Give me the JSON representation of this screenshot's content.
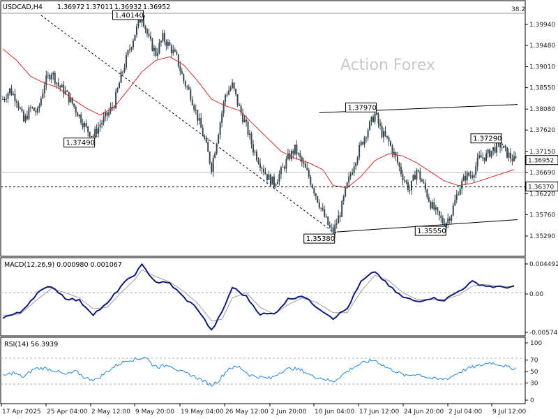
{
  "chart_data": {
    "type": "candlestick",
    "symbol": "USDCAD,H4",
    "ohlc_header": [
      "1.36972",
      "1.37011",
      "1.36932",
      "1.36952"
    ],
    "watermark": "Action Forex",
    "fib_label": "38.2",
    "price_axis": {
      "min": 1.3529,
      "max": 1.3994,
      "ticks": [
        "1.39940",
        "1.39480",
        "1.39010",
        "1.38550",
        "1.38080",
        "1.37620",
        "1.37150",
        "1.36690",
        "1.36220",
        "1.35760",
        "1.35290"
      ]
    },
    "current_price": "1.36952",
    "x_axis_labels": [
      "17 Apr 2025",
      "25 Apr 04:00",
      "2 May 12:00",
      "9 May 20:00",
      "19 May 04:00",
      "26 May 12:00",
      "2 Jun 20:00",
      "10 Jun 04:00",
      "17 Jun 12:00",
      "24 Jun 20:00",
      "2 Jul 04:00",
      "9 Jul 12:00"
    ],
    "price_series_approx": [
      [
        0,
        1.383
      ],
      [
        4,
        1.385
      ],
      [
        8,
        1.383
      ],
      [
        12,
        1.378
      ],
      [
        16,
        1.381
      ],
      [
        20,
        1.38
      ],
      [
        24,
        1.3865
      ],
      [
        28,
        1.389
      ],
      [
        32,
        1.386
      ],
      [
        36,
        1.3845
      ],
      [
        40,
        1.382
      ],
      [
        44,
        1.3793
      ],
      [
        48,
        1.3765
      ],
      [
        52,
        1.3749
      ],
      [
        56,
        1.3775
      ],
      [
        60,
        1.3795
      ],
      [
        64,
        1.382
      ],
      [
        68,
        1.388
      ],
      [
        72,
        1.393
      ],
      [
        76,
        1.3975
      ],
      [
        80,
        1.4014
      ],
      [
        84,
        1.396
      ],
      [
        88,
        1.393
      ],
      [
        92,
        1.3965
      ],
      [
        96,
        1.3945
      ],
      [
        100,
        1.392
      ],
      [
        104,
        1.387
      ],
      [
        108,
        1.384
      ],
      [
        112,
        1.379
      ],
      [
        116,
        1.374
      ],
      [
        120,
        1.368
      ],
      [
        124,
        1.376
      ],
      [
        128,
        1.384
      ],
      [
        132,
        1.386
      ],
      [
        136,
        1.381
      ],
      [
        140,
        1.377
      ],
      [
        144,
        1.372
      ],
      [
        148,
        1.369
      ],
      [
        152,
        1.366
      ],
      [
        156,
        1.3645
      ],
      [
        160,
        1.367
      ],
      [
        164,
        1.37
      ],
      [
        168,
        1.372
      ],
      [
        172,
        1.369
      ],
      [
        176,
        1.366
      ],
      [
        180,
        1.362
      ],
      [
        184,
        1.358
      ],
      [
        188,
        1.3545
      ],
      [
        190,
        1.3538
      ],
      [
        194,
        1.358
      ],
      [
        198,
        1.364
      ],
      [
        202,
        1.369
      ],
      [
        206,
        1.373
      ],
      [
        210,
        1.3765
      ],
      [
        214,
        1.3797
      ],
      [
        218,
        1.3755
      ],
      [
        222,
        1.3735
      ],
      [
        226,
        1.37
      ],
      [
        230,
        1.366
      ],
      [
        234,
        1.363
      ],
      [
        238,
        1.3675
      ],
      [
        242,
        1.364
      ],
      [
        246,
        1.36
      ],
      [
        250,
        1.3575
      ],
      [
        254,
        1.3555
      ],
      [
        258,
        1.358
      ],
      [
        262,
        1.363
      ],
      [
        266,
        1.366
      ],
      [
        270,
        1.3665
      ],
      [
        274,
        1.37
      ],
      [
        278,
        1.3705
      ],
      [
        282,
        1.372
      ],
      [
        286,
        1.3729
      ],
      [
        290,
        1.371
      ],
      [
        294,
        1.3695
      ]
    ],
    "sma_series_approx": [
      [
        0,
        1.394
      ],
      [
        8,
        1.3915
      ],
      [
        16,
        1.388
      ],
      [
        24,
        1.3865
      ],
      [
        32,
        1.3855
      ],
      [
        40,
        1.383
      ],
      [
        48,
        1.381
      ],
      [
        56,
        1.3795
      ],
      [
        64,
        1.3812
      ],
      [
        72,
        1.385
      ],
      [
        80,
        1.389
      ],
      [
        88,
        1.3915
      ],
      [
        96,
        1.3923
      ],
      [
        104,
        1.3905
      ],
      [
        112,
        1.387
      ],
      [
        120,
        1.383
      ],
      [
        128,
        1.3815
      ],
      [
        136,
        1.3805
      ],
      [
        144,
        1.3775
      ],
      [
        152,
        1.3745
      ],
      [
        160,
        1.3715
      ],
      [
        168,
        1.37
      ],
      [
        176,
        1.369
      ],
      [
        184,
        1.3675
      ],
      [
        190,
        1.364
      ],
      [
        198,
        1.3635
      ],
      [
        206,
        1.366
      ],
      [
        214,
        1.3695
      ],
      [
        222,
        1.371
      ],
      [
        230,
        1.3705
      ],
      [
        238,
        1.369
      ],
      [
        246,
        1.367
      ],
      [
        254,
        1.365
      ],
      [
        262,
        1.364
      ],
      [
        270,
        1.3645
      ],
      [
        278,
        1.3655
      ],
      [
        286,
        1.3665
      ],
      [
        294,
        1.3675
      ]
    ],
    "annotations": [
      {
        "text": "1.40140",
        "at_bar": 80,
        "price": 1.4014,
        "side": "above"
      },
      {
        "text": "1.37490",
        "at_bar": 52,
        "price": 1.3749,
        "side": "below"
      },
      {
        "text": "1.37970",
        "at_bar": 214,
        "price": 1.3797,
        "side": "above"
      },
      {
        "text": "1.37290",
        "at_bar": 286,
        "price": 1.3729,
        "side": "above"
      },
      {
        "text": "1.35380",
        "at_bar": 190,
        "price": 1.3538,
        "side": "below"
      },
      {
        "text": "1.35550",
        "at_bar": 254,
        "price": 1.3555,
        "side": "below"
      }
    ],
    "levels": [
      {
        "text": "1.36370",
        "price": 1.3637,
        "style": "dashed"
      }
    ],
    "trendlines": [
      {
        "from": [
          22,
          1.4014
        ],
        "to": [
          190,
          1.3538
        ],
        "style": "dashed"
      },
      {
        "from": [
          182,
          1.38
        ],
        "to": [
          296,
          1.3818
        ],
        "style": "solid"
      },
      {
        "from": [
          192,
          1.3538
        ],
        "to": [
          296,
          1.3565
        ],
        "style": "solid"
      }
    ],
    "macd": {
      "label": "MACD(12,26,9) 0.000980 0.001067",
      "ticks": [
        "0.004492",
        "0.00",
        "-0.005748"
      ],
      "min": -0.005748,
      "max": 0.004492,
      "macd_approx": [
        [
          0,
          -0.0035
        ],
        [
          10,
          -0.0028
        ],
        [
          20,
          0.0002
        ],
        [
          28,
          0.0012
        ],
        [
          36,
          -0.0006
        ],
        [
          44,
          -0.001
        ],
        [
          52,
          -0.003
        ],
        [
          60,
          -0.0015
        ],
        [
          68,
          0.0012
        ],
        [
          76,
          0.003
        ],
        [
          80,
          0.0043
        ],
        [
          88,
          0.0018
        ],
        [
          96,
          0.0016
        ],
        [
          104,
          -0.0005
        ],
        [
          112,
          -0.0022
        ],
        [
          120,
          -0.0055
        ],
        [
          126,
          -0.0028
        ],
        [
          132,
          0.001
        ],
        [
          140,
          -0.0004
        ],
        [
          148,
          -0.003
        ],
        [
          156,
          -0.003
        ],
        [
          164,
          -0.0008
        ],
        [
          172,
          -0.0002
        ],
        [
          180,
          -0.0018
        ],
        [
          190,
          -0.0036
        ],
        [
          198,
          -0.0022
        ],
        [
          206,
          0.0018
        ],
        [
          214,
          0.0034
        ],
        [
          222,
          0.0012
        ],
        [
          230,
          -0.0005
        ],
        [
          238,
          -0.0011
        ],
        [
          246,
          -0.0006
        ],
        [
          254,
          -0.0009
        ],
        [
          262,
          0.0004
        ],
        [
          270,
          0.0018
        ],
        [
          278,
          0.0012
        ],
        [
          286,
          0.001
        ],
        [
          294,
          0.0011
        ]
      ],
      "signal_approx": [
        [
          0,
          -0.0032
        ],
        [
          10,
          -0.003
        ],
        [
          20,
          -0.0008
        ],
        [
          28,
          0.0008
        ],
        [
          36,
          0.0002
        ],
        [
          44,
          -0.0006
        ],
        [
          52,
          -0.0022
        ],
        [
          60,
          -0.002
        ],
        [
          68,
          0.0002
        ],
        [
          76,
          0.0022
        ],
        [
          80,
          0.0036
        ],
        [
          88,
          0.0026
        ],
        [
          96,
          0.0018
        ],
        [
          104,
          0.0004
        ],
        [
          112,
          -0.0014
        ],
        [
          120,
          -0.004
        ],
        [
          126,
          -0.0038
        ],
        [
          132,
          -0.0006
        ],
        [
          140,
          0.0002
        ],
        [
          148,
          -0.002
        ],
        [
          156,
          -0.003
        ],
        [
          164,
          -0.0016
        ],
        [
          172,
          -0.0006
        ],
        [
          180,
          -0.0012
        ],
        [
          190,
          -0.0028
        ],
        [
          198,
          -0.0028
        ],
        [
          206,
          0.0004
        ],
        [
          214,
          0.0028
        ],
        [
          222,
          0.002
        ],
        [
          230,
          0.0002
        ],
        [
          238,
          -0.0008
        ],
        [
          246,
          -0.0008
        ],
        [
          254,
          -0.0008
        ],
        [
          262,
          -0.0002
        ],
        [
          270,
          0.0012
        ],
        [
          278,
          0.0014
        ],
        [
          286,
          0.0011
        ],
        [
          294,
          0.0011
        ]
      ]
    },
    "rsi": {
      "label": "RSI(14) 56.3939",
      "ticks": [
        "100",
        "70",
        "50",
        "30",
        "0"
      ],
      "guides": [
        70,
        30
      ],
      "rsi_approx": [
        [
          0,
          42
        ],
        [
          6,
          48
        ],
        [
          12,
          40
        ],
        [
          18,
          55
        ],
        [
          24,
          56
        ],
        [
          30,
          52
        ],
        [
          36,
          44
        ],
        [
          42,
          50
        ],
        [
          48,
          38
        ],
        [
          54,
          36
        ],
        [
          60,
          50
        ],
        [
          66,
          62
        ],
        [
          72,
          70
        ],
        [
          78,
          72
        ],
        [
          82,
          76
        ],
        [
          86,
          62
        ],
        [
          90,
          58
        ],
        [
          96,
          62
        ],
        [
          102,
          50
        ],
        [
          108,
          44
        ],
        [
          114,
          36
        ],
        [
          120,
          26
        ],
        [
          124,
          34
        ],
        [
          130,
          56
        ],
        [
          136,
          58
        ],
        [
          142,
          44
        ],
        [
          148,
          40
        ],
        [
          154,
          38
        ],
        [
          160,
          50
        ],
        [
          166,
          56
        ],
        [
          172,
          52
        ],
        [
          178,
          42
        ],
        [
          184,
          38
        ],
        [
          190,
          32
        ],
        [
          196,
          46
        ],
        [
          202,
          58
        ],
        [
          208,
          66
        ],
        [
          214,
          70
        ],
        [
          220,
          58
        ],
        [
          226,
          50
        ],
        [
          232,
          42
        ],
        [
          238,
          46
        ],
        [
          244,
          40
        ],
        [
          250,
          36
        ],
        [
          256,
          38
        ],
        [
          262,
          48
        ],
        [
          268,
          56
        ],
        [
          274,
          60
        ],
        [
          280,
          66
        ],
        [
          286,
          62
        ],
        [
          292,
          56
        ],
        [
          295,
          56
        ]
      ]
    }
  }
}
